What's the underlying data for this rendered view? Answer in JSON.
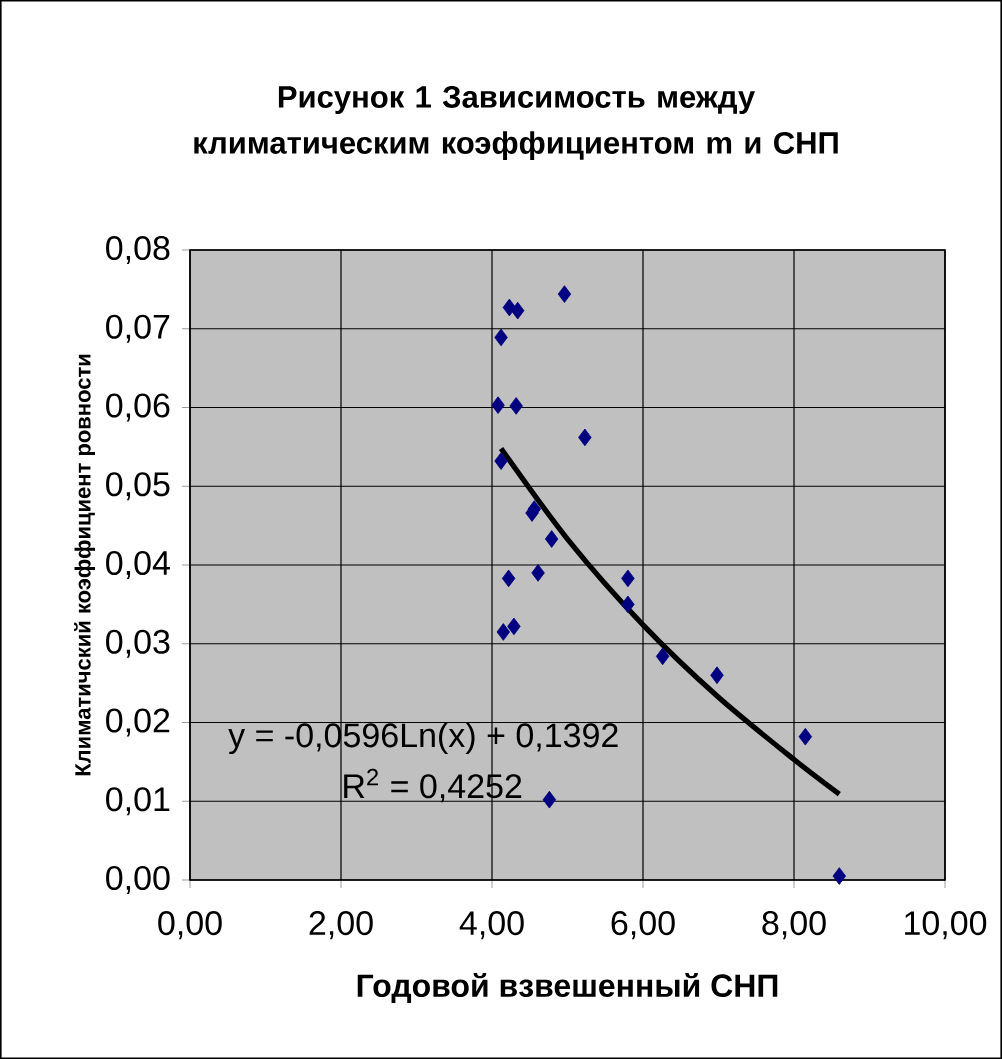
{
  "chart_data": {
    "type": "scatter",
    "title": "Рисунок 1  Зависимость между климатическим коэффициентом m и СНП",
    "xlabel": "Годовой взвешенный СНП",
    "ylabel": "Климатичский коэффициент ровности",
    "annotations": [
      "y = -0,0596Ln(x) + 0,1392",
      "R$^{2}$ = 0,4252"
    ],
    "series": [
      {
        "color": "#000080",
        "marker": "diamond",
        "x": [
          4.96,
          4.23,
          4.34,
          4.12,
          4.08,
          4.32,
          5.23,
          4.12,
          4.56,
          4.53,
          4.79,
          4.22,
          4.61,
          5.8,
          5.8,
          4.15,
          4.29,
          6.26,
          6.98,
          8.15,
          4.76,
          8.6
        ],
        "values": [
          0.0744,
          0.0727,
          0.0723,
          0.0689,
          0.0603,
          0.0602,
          0.0562,
          0.0532,
          0.0471,
          0.0466,
          0.0433,
          0.0383,
          0.039,
          0.0383,
          0.035,
          0.0315,
          0.0322,
          0.0284,
          0.026,
          0.0182,
          0.0102,
          0.0005
        ]
      },
      {
        "type": "line",
        "color": "#000000",
        "x": [
          4.12,
          5.0,
          6.0,
          7.0,
          8.0,
          8.6
        ],
        "values": [
          0.0548,
          0.0433,
          0.0324,
          0.0232,
          0.0153,
          0.0109
        ]
      }
    ],
    "xlim": [
      0,
      10
    ],
    "ylim": [
      0,
      0.08
    ],
    "xticks": [
      {
        "value": 0,
        "label": "0,00"
      },
      {
        "value": 2,
        "label": "2,00"
      },
      {
        "value": 4,
        "label": "4,00"
      },
      {
        "value": 6,
        "label": "6,00"
      },
      {
        "value": 8,
        "label": "8,00"
      },
      {
        "value": 10,
        "label": "10,00"
      }
    ],
    "yticks": [
      {
        "value": 0,
        "label": "0,00"
      },
      {
        "value": 0.01,
        "label": "0,01"
      },
      {
        "value": 0.02,
        "label": "0,02"
      },
      {
        "value": 0.03,
        "label": "0,03"
      },
      {
        "value": 0.04,
        "label": "0,04"
      },
      {
        "value": 0.05,
        "label": "0,05"
      },
      {
        "value": 0.06,
        "label": "0,06"
      },
      {
        "value": 0.07,
        "label": "0,07"
      },
      {
        "value": 0.08,
        "label": "0,08"
      }
    ],
    "grid": true
  }
}
